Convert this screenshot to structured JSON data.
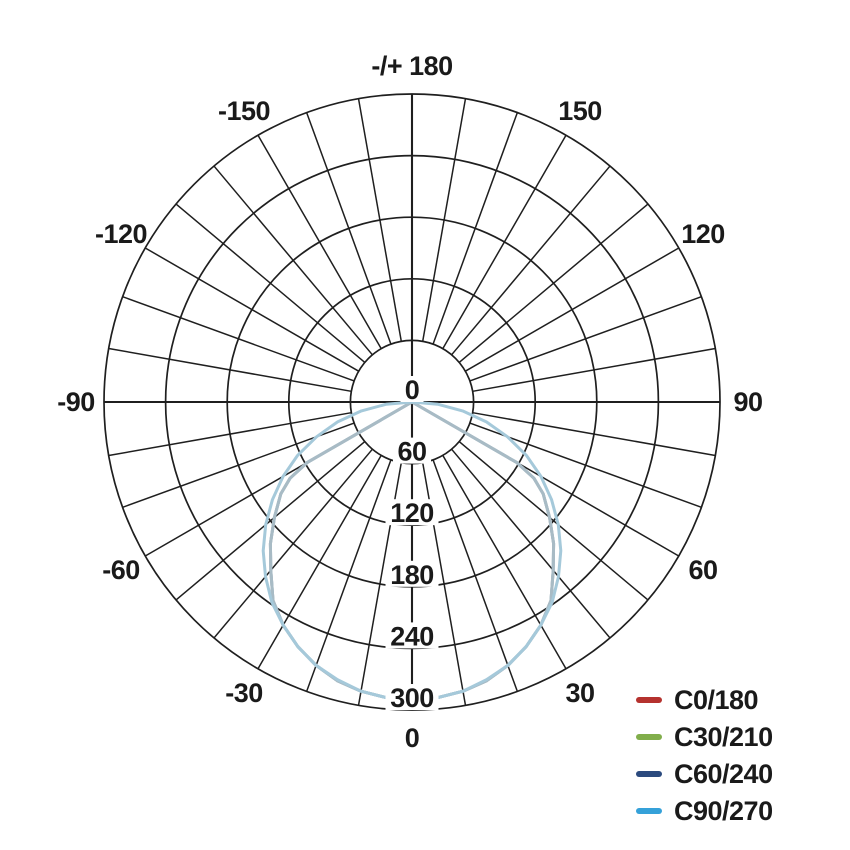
{
  "chart_data": {
    "type": "polar_photometric",
    "title": "",
    "background_color": "#ffffff",
    "grid_color": "#1f1f1f",
    "label_color": "#1a1a1a",
    "angle_grid_step_deg": 10,
    "angle_tick_labels": [
      {
        "deg": 0,
        "label": "0"
      },
      {
        "deg": 30,
        "label": "30"
      },
      {
        "deg": 60,
        "label": "60"
      },
      {
        "deg": 90,
        "label": "90"
      },
      {
        "deg": 120,
        "label": "120"
      },
      {
        "deg": 150,
        "label": "150"
      },
      {
        "deg": 180,
        "label": "-/+ 180"
      },
      {
        "deg": -150,
        "label": "-150"
      },
      {
        "deg": -120,
        "label": "-120"
      },
      {
        "deg": -90,
        "label": "-90"
      },
      {
        "deg": -60,
        "label": "-60"
      },
      {
        "deg": -30,
        "label": "-30"
      }
    ],
    "radial_ticks": [
      0,
      60,
      120,
      180,
      240,
      300
    ],
    "radial_max": 300,
    "legend_position": "bottom-right",
    "series": [
      {
        "name": "C0/180",
        "legend_color": "#b5322e",
        "plot_color": "#a8bbc5",
        "points": [
          [
            -63,
            0
          ],
          [
            -60,
            118
          ],
          [
            -58,
            140
          ],
          [
            -55,
            156
          ],
          [
            -50,
            175
          ],
          [
            -45,
            195
          ],
          [
            -40,
            214
          ],
          [
            -35,
            236
          ],
          [
            -30,
            251
          ],
          [
            -25,
            263
          ],
          [
            -20,
            273
          ],
          [
            -15,
            281
          ],
          [
            -10,
            286
          ],
          [
            -5,
            289
          ],
          [
            0,
            290
          ],
          [
            5,
            289
          ],
          [
            10,
            286
          ],
          [
            15,
            281
          ],
          [
            20,
            273
          ],
          [
            25,
            263
          ],
          [
            30,
            251
          ],
          [
            35,
            236
          ],
          [
            40,
            214
          ],
          [
            45,
            195
          ],
          [
            50,
            175
          ],
          [
            55,
            156
          ],
          [
            58,
            140
          ],
          [
            60,
            118
          ],
          [
            63,
            0
          ]
        ]
      },
      {
        "name": "C30/210",
        "legend_color": "#81ae4b",
        "plot_color": "#a8bbc5",
        "points": [
          [
            -63,
            0
          ],
          [
            -60,
            118
          ],
          [
            -58,
            140
          ],
          [
            -55,
            156
          ],
          [
            -50,
            175
          ],
          [
            -45,
            195
          ],
          [
            -40,
            214
          ],
          [
            -35,
            236
          ],
          [
            -30,
            251
          ],
          [
            -25,
            263
          ],
          [
            -20,
            273
          ],
          [
            -15,
            281
          ],
          [
            -10,
            286
          ],
          [
            -5,
            289
          ],
          [
            0,
            290
          ],
          [
            5,
            289
          ],
          [
            10,
            286
          ],
          [
            15,
            281
          ],
          [
            20,
            273
          ],
          [
            25,
            263
          ],
          [
            30,
            251
          ],
          [
            35,
            236
          ],
          [
            40,
            214
          ],
          [
            45,
            195
          ],
          [
            50,
            175
          ],
          [
            55,
            156
          ],
          [
            58,
            140
          ],
          [
            60,
            118
          ],
          [
            63,
            0
          ]
        ]
      },
      {
        "name": "C60/240",
        "legend_color": "#2b4a7e",
        "plot_color": "#a8bbc5",
        "points": [
          [
            -63,
            0
          ],
          [
            -60,
            118
          ],
          [
            -58,
            140
          ],
          [
            -55,
            156
          ],
          [
            -50,
            175
          ],
          [
            -45,
            195
          ],
          [
            -40,
            214
          ],
          [
            -35,
            236
          ],
          [
            -30,
            251
          ],
          [
            -25,
            263
          ],
          [
            -20,
            273
          ],
          [
            -15,
            281
          ],
          [
            -10,
            286
          ],
          [
            -5,
            289
          ],
          [
            0,
            290
          ],
          [
            5,
            289
          ],
          [
            10,
            286
          ],
          [
            15,
            281
          ],
          [
            20,
            273
          ],
          [
            25,
            263
          ],
          [
            30,
            251
          ],
          [
            35,
            236
          ],
          [
            40,
            214
          ],
          [
            45,
            195
          ],
          [
            50,
            175
          ],
          [
            55,
            156
          ],
          [
            58,
            140
          ],
          [
            60,
            118
          ],
          [
            63,
            0
          ]
        ]
      },
      {
        "name": "C90/270",
        "legend_color": "#35a1d9",
        "plot_color": "#a5c9da",
        "points": [
          [
            -90,
            0
          ],
          [
            -85,
            25
          ],
          [
            -80,
            50
          ],
          [
            -75,
            75
          ],
          [
            -70,
            99
          ],
          [
            -65,
            123
          ],
          [
            -60,
            145
          ],
          [
            -55,
            166
          ],
          [
            -50,
            186
          ],
          [
            -45,
            205
          ],
          [
            -40,
            222
          ],
          [
            -35,
            238
          ],
          [
            -30,
            251
          ],
          [
            -25,
            263
          ],
          [
            -20,
            273
          ],
          [
            -15,
            280
          ],
          [
            -10,
            286
          ],
          [
            -5,
            289
          ],
          [
            0,
            290
          ],
          [
            5,
            289
          ],
          [
            10,
            286
          ],
          [
            15,
            280
          ],
          [
            20,
            273
          ],
          [
            25,
            263
          ],
          [
            30,
            251
          ],
          [
            35,
            238
          ],
          [
            40,
            222
          ],
          [
            45,
            205
          ],
          [
            50,
            186
          ],
          [
            55,
            166
          ],
          [
            60,
            145
          ],
          [
            65,
            123
          ],
          [
            70,
            99
          ],
          [
            75,
            75
          ],
          [
            80,
            50
          ],
          [
            85,
            25
          ],
          [
            90,
            0
          ]
        ]
      }
    ]
  }
}
